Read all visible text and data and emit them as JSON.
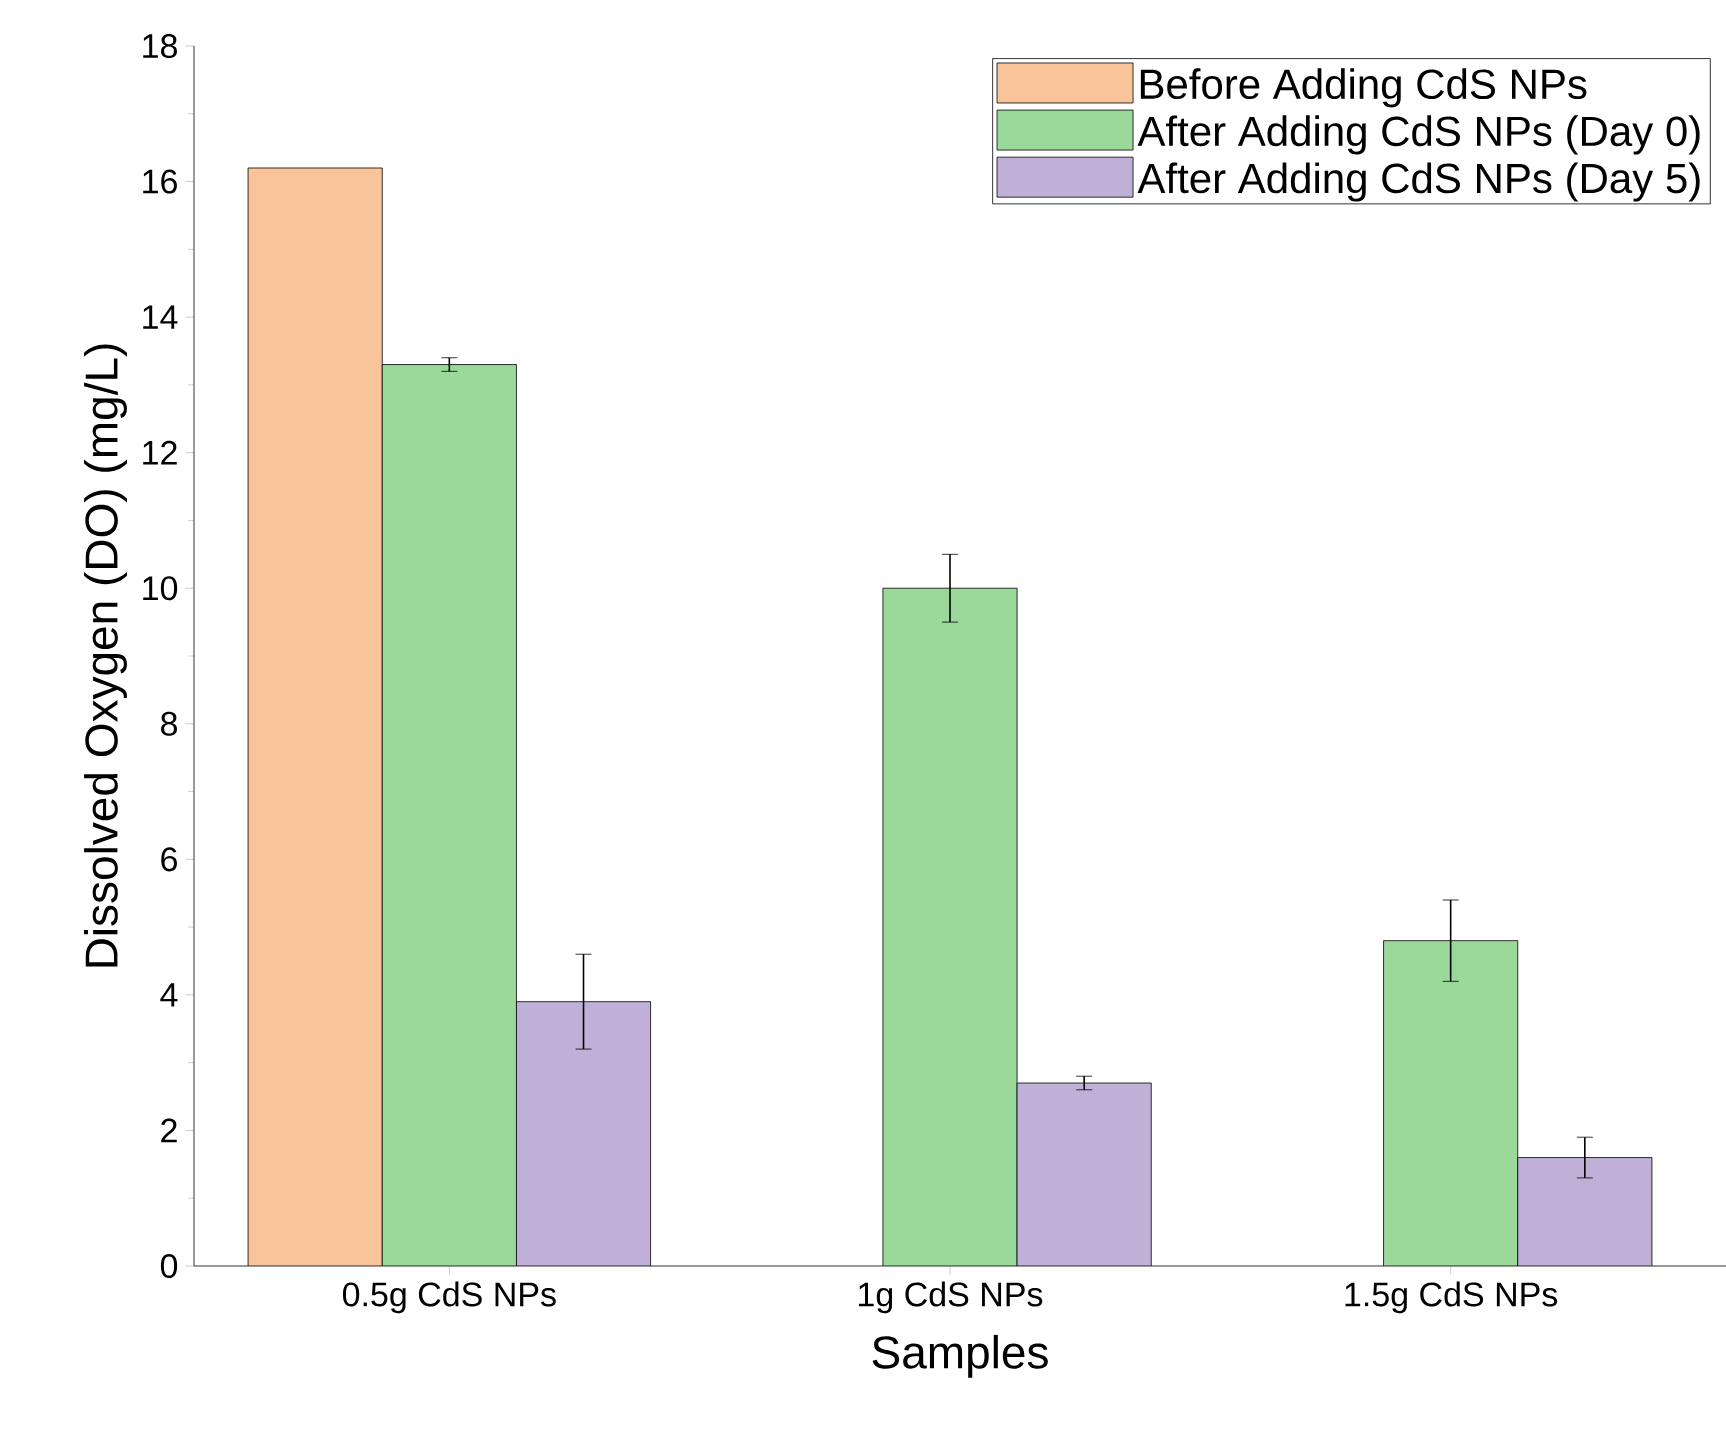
{
  "chart_data": {
    "type": "bar",
    "xlabel": "Samples",
    "ylabel": "Dissolved Oxygen (DO) (mg/L)",
    "categories": [
      "0.5g CdS NPs",
      "1g CdS NPs",
      "1.5g CdS NPs"
    ],
    "series": [
      {
        "name": "Before Adding CdS NPs",
        "color": "#f9c499",
        "values": [
          16.2,
          null,
          null
        ]
      },
      {
        "name": "After Adding CdS NPs (Day 0)",
        "color": "#9bd99a",
        "values": [
          13.3,
          10.0,
          4.8
        ],
        "errors": [
          0.1,
          0.5,
          0.6
        ]
      },
      {
        "name": "After Adding CdS NPs (Day 5)",
        "color": "#c0b0d8",
        "values": [
          3.9,
          2.7,
          1.6
        ],
        "errors": [
          0.7,
          0.1,
          0.3
        ]
      }
    ],
    "ylim": [
      0,
      18
    ],
    "yticks": [
      0,
      2,
      4,
      6,
      8,
      10,
      12,
      14,
      16,
      18
    ],
    "legend": "top right",
    "grid": false
  }
}
